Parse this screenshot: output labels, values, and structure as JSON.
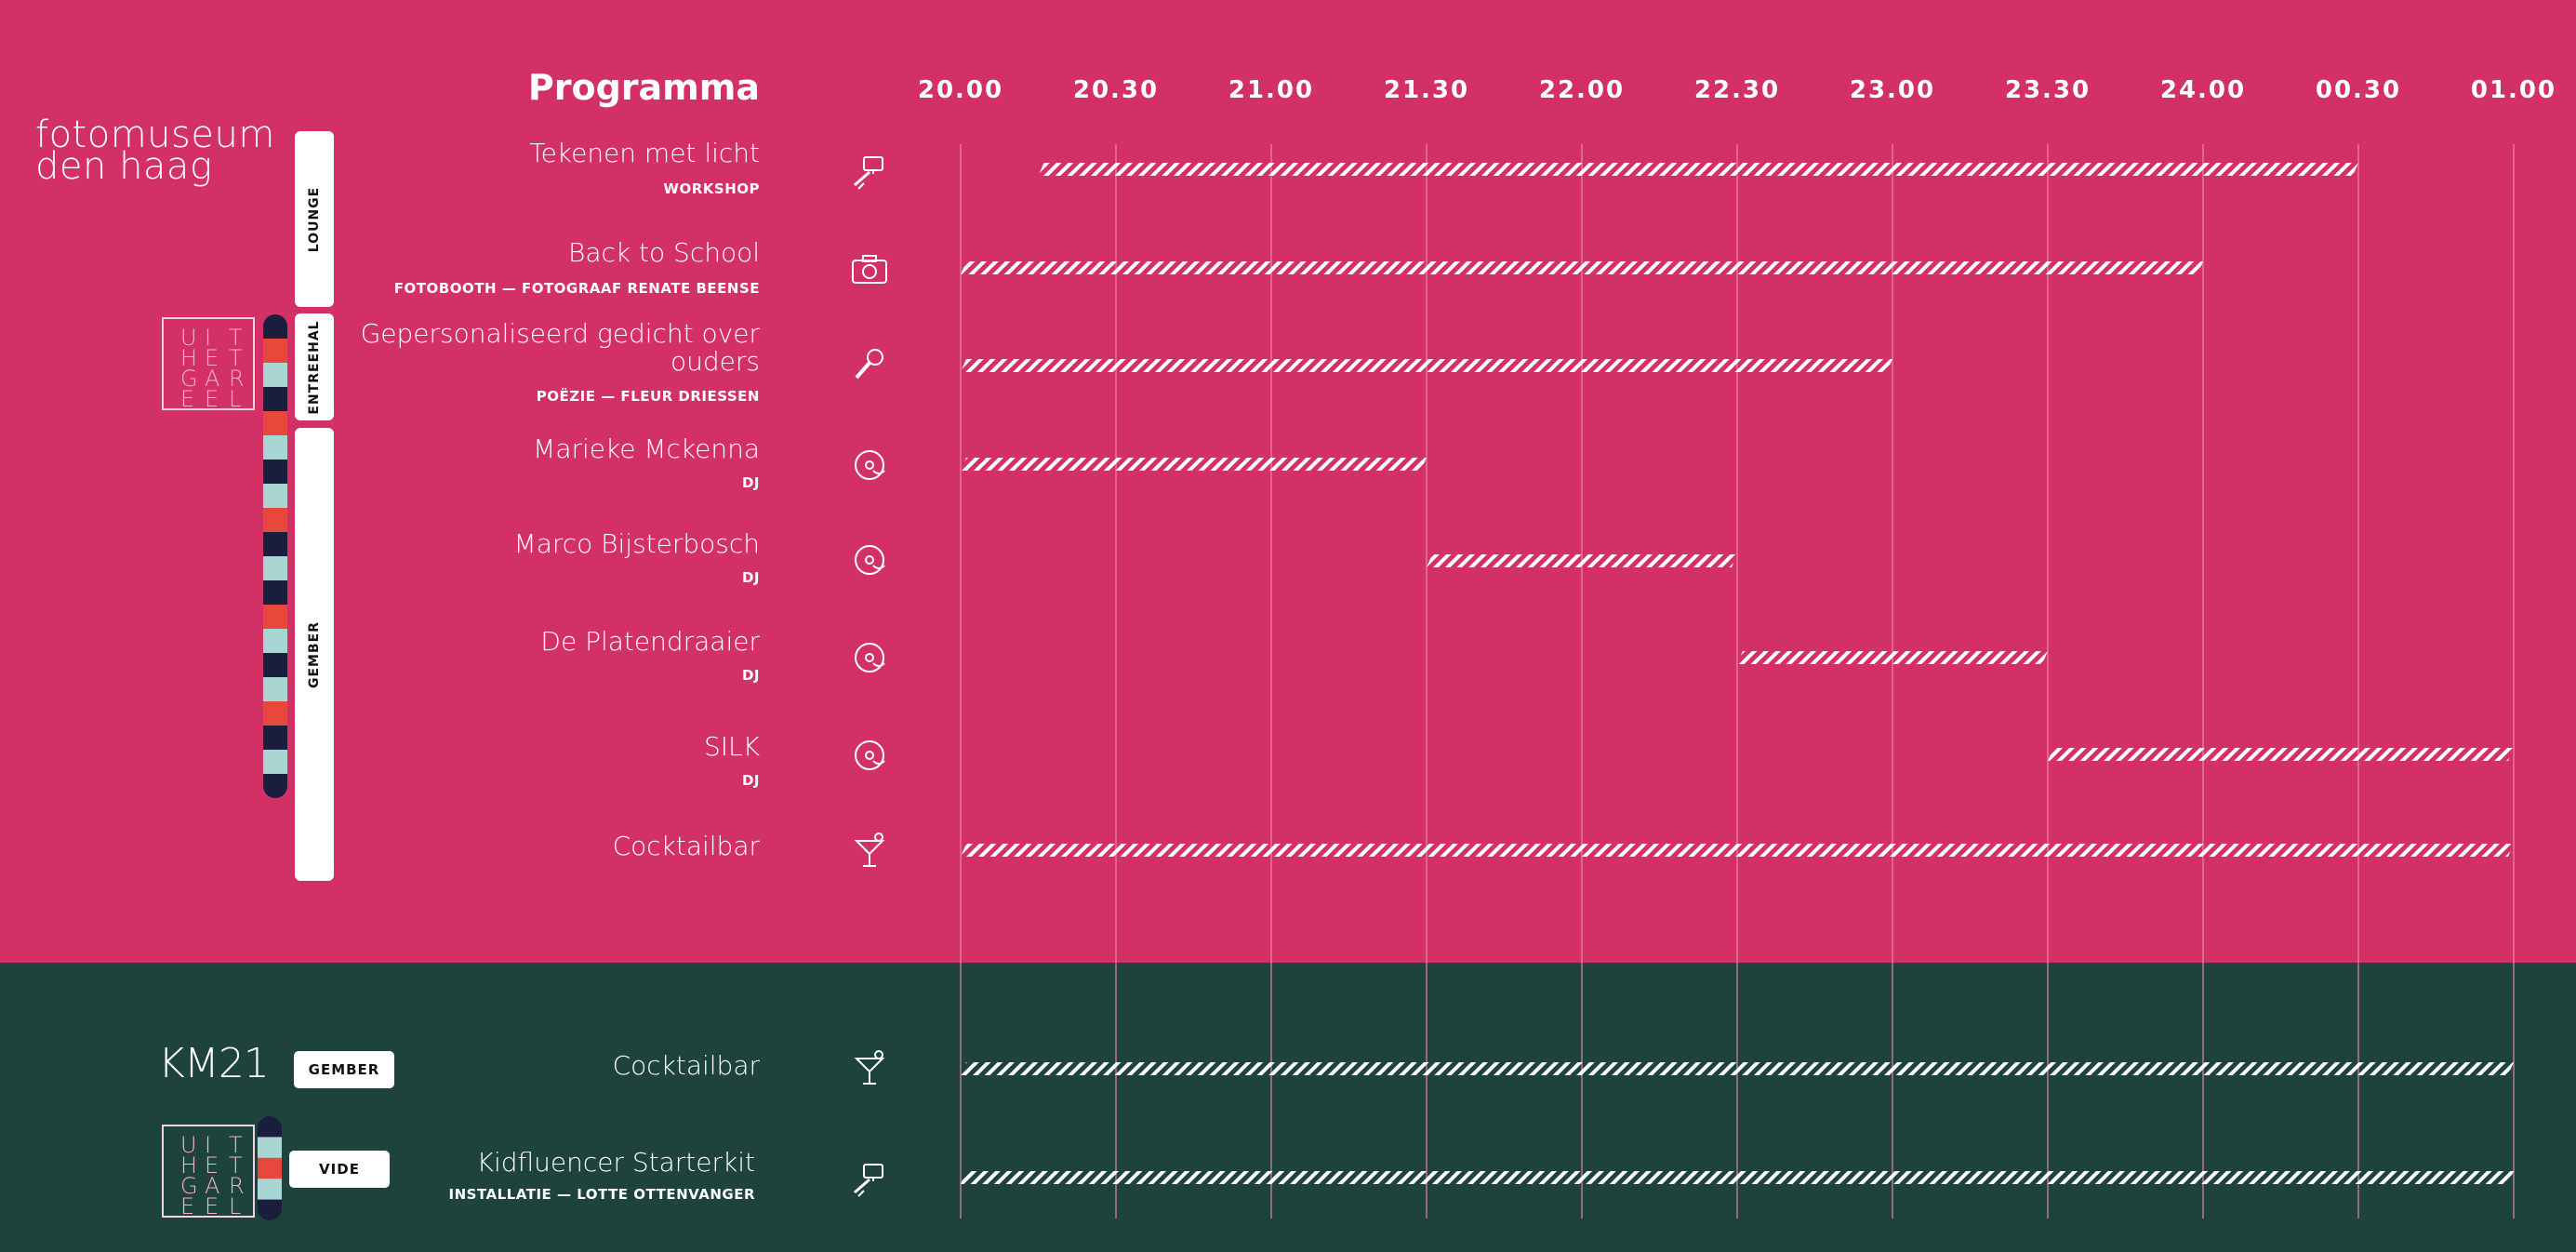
{
  "colors": {
    "top_bg": "#d33166",
    "bottom_bg": "#1e433d",
    "grid": "#ef8fae",
    "bar": "#ffffff",
    "stripe_navy": "#1b1d3c",
    "stripe_red": "#e8483c",
    "stripe_teal": "#a9d6d2",
    "uhg_letters": "#f3b5c6"
  },
  "brand": {
    "line1": "fotomuseum",
    "line2": "den haag",
    "km21": "KM21",
    "uhg_letters": [
      "U",
      "I",
      "T",
      "H",
      "E",
      "T",
      "G",
      "A",
      "R",
      "E",
      "E",
      "L"
    ]
  },
  "header": {
    "title": "Programma"
  },
  "rooms": {
    "lounge": "LOUNGE",
    "entreehal": "ENTREEHAL",
    "gember": "GEMBER",
    "gember_km21": "GEMBER",
    "vide": "VIDE"
  },
  "chart_data": {
    "type": "gantt",
    "title": "Programma",
    "x_ticks": [
      "20.00",
      "20.30",
      "21.00",
      "21.30",
      "22.00",
      "22.30",
      "23.00",
      "23.30",
      "24.00",
      "00.30",
      "01.00"
    ],
    "x_range_hours": [
      20.0,
      25.0
    ],
    "events": [
      {
        "title": "Tekenen met licht",
        "subtitle": "WORKSHOP",
        "icon": "pen-tablet-icon",
        "start": 20.25,
        "end": 24.5,
        "room": "LOUNGE",
        "venue": "fotomuseum den haag"
      },
      {
        "title": "Back to School",
        "subtitle": "FOTOBOOTH — FOTOGRAAF RENATE BEENSE",
        "icon": "camera-icon",
        "start": 20.0,
        "end": 24.0,
        "room": "LOUNGE",
        "venue": "fotomuseum den haag"
      },
      {
        "title": "Gepersonaliseerd gedicht over ouders",
        "subtitle": "POËZIE — FLEUR DRIESSEN",
        "icon": "microphone-icon",
        "start": 20.0,
        "end": 23.0,
        "room": "ENTREEHAL",
        "venue": "fotomuseum den haag"
      },
      {
        "title": "Marieke Mckenna",
        "subtitle": "DJ",
        "icon": "record-icon",
        "start": 20.0,
        "end": 21.5,
        "room": "GEMBER",
        "venue": "fotomuseum den haag"
      },
      {
        "title": "Marco Bijsterbosch",
        "subtitle": "DJ",
        "icon": "record-icon",
        "start": 21.5,
        "end": 22.5,
        "room": "GEMBER",
        "venue": "fotomuseum den haag"
      },
      {
        "title": "De Platendraaier",
        "subtitle": "DJ",
        "icon": "record-icon",
        "start": 22.5,
        "end": 23.5,
        "room": "GEMBER",
        "venue": "fotomuseum den haag"
      },
      {
        "title": "SILK",
        "subtitle": "DJ",
        "icon": "record-icon",
        "start": 23.5,
        "end": 25.0,
        "room": "GEMBER",
        "venue": "fotomuseum den haag"
      },
      {
        "title": "Cocktailbar",
        "subtitle": "",
        "icon": "cocktail-icon",
        "start": 20.0,
        "end": 25.0,
        "room": "GEMBER",
        "venue": "fotomuseum den haag"
      },
      {
        "title": "Cocktailbar",
        "subtitle": "",
        "icon": "cocktail-icon",
        "start": 20.0,
        "end": 25.0,
        "room": "GEMBER",
        "venue": "KM21"
      },
      {
        "title": "Kidfluencer Starterkit",
        "subtitle": "INSTALLATIE — LOTTE OTTENVANGER",
        "icon": "pen-tablet-icon",
        "start": 20.0,
        "end": 25.0,
        "room": "VIDE",
        "venue": "KM21"
      }
    ]
  }
}
